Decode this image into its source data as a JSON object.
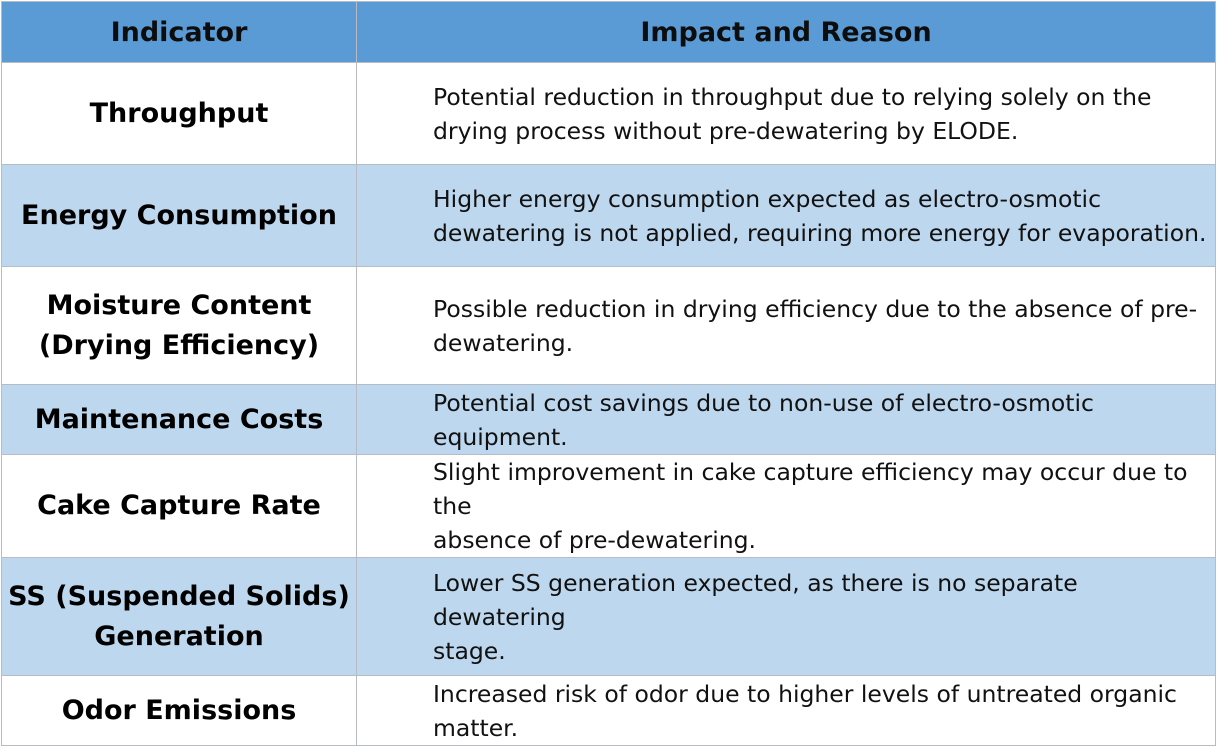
{
  "header": {
    "col1": "Indicator",
    "col2": "Impact and Reason"
  },
  "rows": [
    {
      "indicator": [
        "Throughput"
      ],
      "impact": [
        "Potential reduction in throughput due to relying solely on the",
        "drying process without pre-dewatering by ELODE."
      ]
    },
    {
      "indicator": [
        "Energy Consumption"
      ],
      "impact": [
        "Higher energy consumption expected as electro-osmotic",
        "dewatering is not applied, requiring more energy for evaporation."
      ]
    },
    {
      "indicator": [
        "Moisture Content",
        "(Drying Efficiency)"
      ],
      "impact": [
        "Possible reduction in drying efficiency due to the absence of pre-",
        "dewatering."
      ]
    },
    {
      "indicator": [
        "Maintenance Costs"
      ],
      "impact": [
        "Potential cost savings due to non-use of electro-osmotic",
        "equipment."
      ]
    },
    {
      "indicator": [
        "Cake Capture Rate"
      ],
      "impact": [
        "Slight improvement in cake capture efficiency may occur due to the",
        "absence of pre-dewatering."
      ]
    },
    {
      "indicator": [
        "SS (Suspended Solids)",
        "Generation"
      ],
      "impact": [
        "Lower SS generation expected, as there is no separate dewatering",
        "stage."
      ]
    },
    {
      "indicator": [
        "Odor Emissions"
      ],
      "impact": [
        "Increased risk of odor due to higher levels of untreated organic",
        "matter."
      ]
    }
  ],
  "colors": {
    "header_bg": "#5b9bd5",
    "alt_row_bg": "#bdd7ee",
    "row_bg": "#ffffff",
    "border": "#b7bcc4"
  }
}
